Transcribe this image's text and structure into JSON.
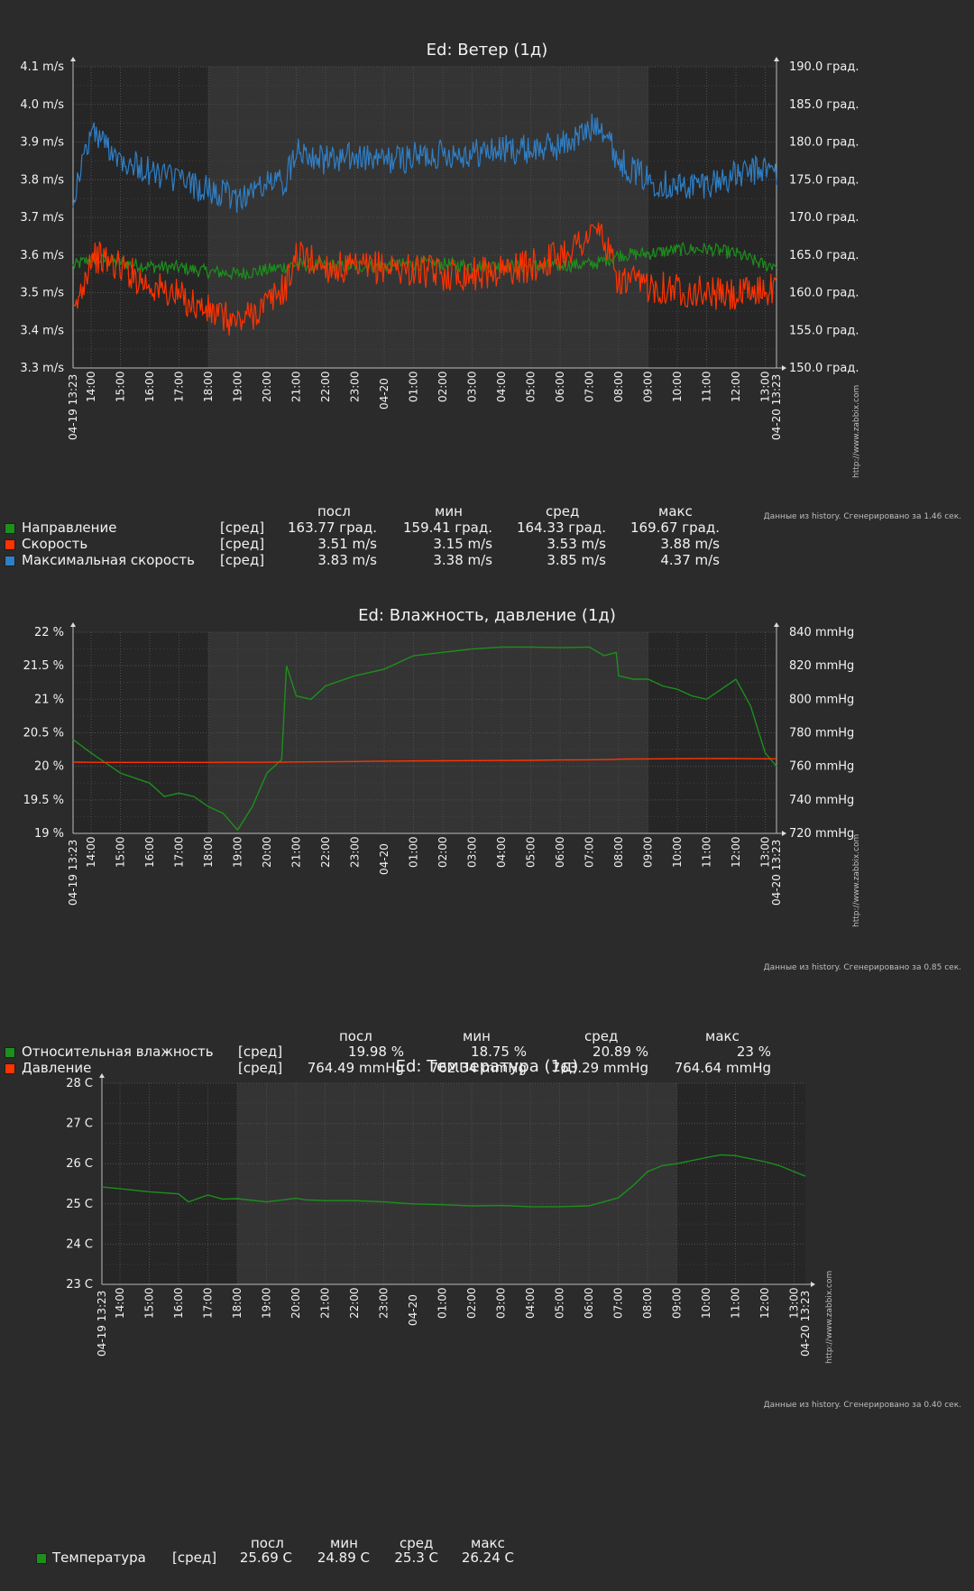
{
  "colors": {
    "background": "#2b2b2b",
    "plot": "#262626",
    "period": "#343434",
    "grid": "#505050",
    "green": "#1c8f1c",
    "red": "#ff3300",
    "blue": "#2f7fc6",
    "accent_red": "#ff5555"
  },
  "charts": [
    {
      "title": "Ed: Ветер (1д)",
      "left_ticks": [
        "4.1 m/s",
        "4.0 m/s",
        "3.9 m/s",
        "3.8 m/s",
        "3.7 m/s",
        "3.6 m/s",
        "3.5 m/s",
        "3.4 m/s",
        "3.3 m/s"
      ],
      "right_ticks": [
        "190.0 град.",
        "185.0 град.",
        "180.0 град.",
        "175.0 град.",
        "170.0 град.",
        "165.0 град.",
        "160.0 град.",
        "155.0 град.",
        "150.0 град."
      ],
      "x_start": "04-19 13:23",
      "x_end": "04-20 13:23",
      "x_ticks": [
        "14:00",
        "15:00",
        "16:00",
        "17:00",
        "18:00",
        "19:00",
        "20:00",
        "21:00",
        "22:00",
        "23:00",
        "04-20",
        "01:00",
        "02:00",
        "03:00",
        "04:00",
        "05:00",
        "06:00",
        "07:00",
        "08:00",
        "09:00",
        "10:00",
        "11:00",
        "12:00",
        "13:00"
      ],
      "watermark": "http://www.zabbix.com",
      "footer": "Данные из history. Сгенерировано за 1.46 сек.",
      "headers": {
        "last": "посл",
        "min": "мин",
        "avg": "сред",
        "max": "макс"
      },
      "legend": [
        {
          "name": "Направление",
          "func": "[сред]",
          "last": "163.77 град.",
          "min": "159.41 град.",
          "avg": "164.33 град.",
          "max": "169.67 град.",
          "color": "#1c8f1c"
        },
        {
          "name": "Скорость",
          "func": "[сред]",
          "last": "3.51 m/s",
          "min": "3.15 m/s",
          "avg": "3.53 m/s",
          "max": "3.88 m/s",
          "color": "#ff3300"
        },
        {
          "name": "Максимальная скорость",
          "func": "[сред]",
          "last": "3.83 m/s",
          "min": "3.38 m/s",
          "avg": "3.85 m/s",
          "max": "4.37 m/s",
          "color": "#2f7fc6"
        }
      ]
    },
    {
      "title": "Ed: Влажность, давление (1д)",
      "left_ticks": [
        "22 %",
        "21.5 %",
        "21 %",
        "20.5 %",
        "20 %",
        "19.5 %",
        "19 %"
      ],
      "right_ticks": [
        "840 mmHg",
        "820 mmHg",
        "800 mmHg",
        "780 mmHg",
        "760 mmHg",
        "740 mmHg",
        "720 mmHg"
      ],
      "x_start": "04-19 13:23",
      "x_end": "04-20 13:23",
      "x_ticks": [
        "14:00",
        "15:00",
        "16:00",
        "17:00",
        "18:00",
        "19:00",
        "20:00",
        "21:00",
        "22:00",
        "23:00",
        "04-20",
        "01:00",
        "02:00",
        "03:00",
        "04:00",
        "05:00",
        "06:00",
        "07:00",
        "08:00",
        "09:00",
        "10:00",
        "11:00",
        "12:00",
        "13:00"
      ],
      "watermark": "http://www.zabbix.com",
      "footer": "Данные из history. Сгенерировано за 0.85 сек.",
      "headers": {
        "last": "посл",
        "min": "мин",
        "avg": "сред",
        "max": "макс"
      },
      "legend": [
        {
          "name": "Относительная влажность",
          "func": "[сред]",
          "last": "19.98 %",
          "min": "18.75 %",
          "avg": "20.89 %",
          "max": "23 %",
          "color": "#1c8f1c"
        },
        {
          "name": "Давление",
          "func": "[сред]",
          "last": "764.49 mmHg",
          "min": "762.34 mmHg",
          "avg": "763.29 mmHg",
          "max": "764.64 mmHg",
          "color": "#ff3300"
        }
      ]
    },
    {
      "title": "Ed: Температура (1д)",
      "left_ticks": [
        "28 C",
        "27 C",
        "26 C",
        "25 C",
        "24 C",
        "23 C"
      ],
      "right_ticks": [],
      "x_start": "04-19 13:23",
      "x_end": "04-20 13:23",
      "x_ticks": [
        "14:00",
        "15:00",
        "16:00",
        "17:00",
        "18:00",
        "19:00",
        "20:00",
        "21:00",
        "22:00",
        "23:00",
        "04-20",
        "01:00",
        "02:00",
        "03:00",
        "04:00",
        "05:00",
        "06:00",
        "07:00",
        "08:00",
        "09:00",
        "10:00",
        "11:00",
        "12:00",
        "13:00"
      ],
      "watermark": "http://www.zabbix.com",
      "footer": "Данные из history. Сгенерировано за 0.40 сек.",
      "headers": {
        "last": "посл",
        "min": "мин",
        "avg": "сред",
        "max": "макс"
      },
      "legend": [
        {
          "name": "Температура",
          "func": "[сред]",
          "last": "25.69 C",
          "min": "24.89 C",
          "avg": "25.3 C",
          "max": "26.24 C",
          "color": "#1c8f1c"
        }
      ]
    }
  ],
  "chart_data": [
    {
      "type": "line",
      "title": "Ed: Ветер (1д)",
      "x": [
        "13:23",
        "14:00",
        "15:00",
        "16:00",
        "17:00",
        "18:00",
        "19:00",
        "20:00",
        "20:40",
        "21:00",
        "22:00",
        "23:00",
        "00:00",
        "01:00",
        "02:00",
        "03:00",
        "04:00",
        "05:00",
        "06:00",
        "07:00",
        "07:20",
        "08:00",
        "09:00",
        "10:00",
        "11:00",
        "12:00",
        "13:00",
        "13:23"
      ],
      "ylim": [
        3.3,
        4.1
      ],
      "y2lim": [
        150,
        190
      ],
      "series": [
        {
          "name": "Направление",
          "axis": "right",
          "color": "#1c8f1c",
          "values": [
            163.5,
            164.5,
            164,
            163.5,
            163.3,
            162.8,
            162.5,
            163,
            163.5,
            163.8,
            163.6,
            163.5,
            163.6,
            163.8,
            163.8,
            163.6,
            163.5,
            163.5,
            163.6,
            163.8,
            164,
            165,
            165.2,
            165.7,
            165.8,
            165.2,
            163.6,
            163.8
          ]
        },
        {
          "name": "Скорость",
          "axis": "left",
          "color": "#ff3300",
          "values": [
            3.43,
            3.6,
            3.57,
            3.52,
            3.49,
            3.45,
            3.42,
            3.47,
            3.52,
            3.6,
            3.57,
            3.56,
            3.57,
            3.56,
            3.55,
            3.55,
            3.56,
            3.57,
            3.6,
            3.65,
            3.67,
            3.53,
            3.52,
            3.51,
            3.5,
            3.49,
            3.51,
            3.51
          ]
        },
        {
          "name": "Максимальная скорость",
          "axis": "left",
          "color": "#2f7fc6",
          "values": [
            3.75,
            3.93,
            3.86,
            3.82,
            3.8,
            3.77,
            3.75,
            3.79,
            3.8,
            3.89,
            3.85,
            3.86,
            3.85,
            3.86,
            3.87,
            3.87,
            3.88,
            3.88,
            3.89,
            3.93,
            3.96,
            3.85,
            3.8,
            3.78,
            3.79,
            3.81,
            3.83,
            3.82
          ]
        }
      ]
    },
    {
      "type": "line",
      "title": "Ed: Влажность, давление (1д)",
      "x": [
        "13:23",
        "14:00",
        "15:00",
        "16:00",
        "16:30",
        "17:00",
        "17:30",
        "18:00",
        "18:30",
        "19:00",
        "19:30",
        "20:00",
        "20:30",
        "20:40",
        "21:00",
        "21:30",
        "22:00",
        "23:00",
        "00:00",
        "01:00",
        "02:00",
        "03:00",
        "04:00",
        "05:00",
        "06:00",
        "07:00",
        "07:30",
        "07:55",
        "08:00",
        "08:30",
        "09:00",
        "09:30",
        "10:00",
        "10:30",
        "11:00",
        "11:30",
        "12:00",
        "12:30",
        "13:00",
        "13:23"
      ],
      "ylim": [
        19,
        22
      ],
      "y2lim": [
        720,
        840
      ],
      "series": [
        {
          "name": "Относительная влажность",
          "axis": "left",
          "color": "#1c8f1c",
          "values": [
            20.4,
            20.2,
            19.9,
            19.75,
            19.55,
            19.6,
            19.55,
            19.4,
            19.3,
            19.05,
            19.4,
            19.9,
            20.1,
            21.5,
            21.05,
            21.0,
            21.2,
            21.35,
            21.45,
            21.65,
            21.7,
            21.75,
            21.78,
            21.78,
            21.77,
            21.78,
            21.65,
            21.7,
            21.35,
            21.3,
            21.3,
            21.2,
            21.15,
            21.05,
            21.0,
            21.15,
            21.3,
            20.9,
            20.2,
            20.0
          ]
        },
        {
          "name": "Давление",
          "axis": "right",
          "color": "#ff3300",
          "values": [
            762.5,
            762.4,
            762.35,
            762.35,
            762.34,
            762.35,
            762.35,
            762.36,
            762.38,
            762.4,
            762.42,
            762.45,
            762.5,
            762.55,
            762.6,
            762.65,
            762.7,
            762.9,
            763.1,
            763.2,
            763.3,
            763.4,
            763.5,
            763.6,
            763.8,
            763.9,
            764,
            764.1,
            764.3,
            764.4,
            764.45,
            764.5,
            764.55,
            764.6,
            764.62,
            764.64,
            764.6,
            764.55,
            764.5,
            764.49
          ]
        }
      ]
    },
    {
      "type": "line",
      "title": "Ed: Температура (1д)",
      "x": [
        "13:23",
        "14:00",
        "15:00",
        "16:00",
        "16:20",
        "17:00",
        "17:30",
        "18:00",
        "19:00",
        "20:00",
        "20:20",
        "21:00",
        "22:00",
        "23:00",
        "00:00",
        "01:00",
        "02:00",
        "03:00",
        "04:00",
        "05:00",
        "06:00",
        "07:00",
        "07:30",
        "08:00",
        "08:30",
        "09:00",
        "10:00",
        "10:30",
        "11:00",
        "12:00",
        "12:30",
        "13:00",
        "13:23"
      ],
      "ylim": [
        23,
        28
      ],
      "series": [
        {
          "name": "Температура",
          "axis": "left",
          "color": "#1c8f1c",
          "values": [
            25.42,
            25.38,
            25.3,
            25.25,
            25.05,
            25.22,
            25.12,
            25.13,
            25.05,
            25.14,
            25.1,
            25.08,
            25.08,
            25.05,
            25.0,
            24.98,
            24.95,
            24.96,
            24.93,
            24.93,
            24.95,
            25.15,
            25.45,
            25.8,
            25.95,
            26.0,
            26.15,
            26.22,
            26.2,
            26.05,
            25.95,
            25.8,
            25.69
          ]
        }
      ]
    }
  ]
}
